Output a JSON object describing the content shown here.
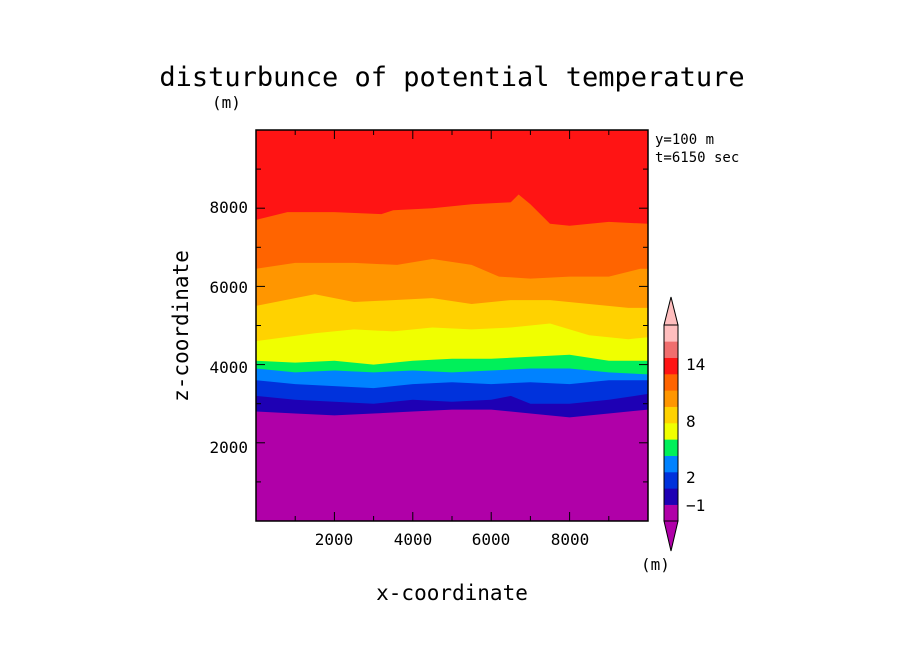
{
  "chart_data": {
    "type": "heatmap",
    "title": "disturbunce of potential temperature",
    "units_top": "(m)",
    "units_colorbar": "(m)",
    "info": [
      "y=100 m",
      "t=6150 sec"
    ],
    "xlabel": "x-coordinate",
    "ylabel": "z-coordinate",
    "xlim": [
      0,
      10000
    ],
    "ylim": [
      0,
      10000
    ],
    "x_ticks": [
      "2000",
      "4000",
      "6000",
      "8000"
    ],
    "y_ticks": [
      "2000",
      "4000",
      "6000",
      "8000"
    ],
    "colorbar_labels": [
      "14",
      "8",
      "2",
      "−1"
    ],
    "colorbar_colors": [
      "#b000a8",
      "#1e00b4",
      "#0032dc",
      "#0082ff",
      "#00f05a",
      "#f0ff00",
      "#ffd200",
      "#ff9600",
      "#ff6400",
      "#ff1414",
      "#f06e6e",
      "#ffbebe"
    ],
    "bands": [
      {
        "color": "#ff1414",
        "upper": [
          [
            0,
            10000
          ],
          [
            10000,
            10000
          ]
        ]
      },
      {
        "color": "#ff6400",
        "upper": [
          [
            0,
            7700
          ],
          [
            800,
            7900
          ],
          [
            2000,
            7900
          ],
          [
            3200,
            7850
          ],
          [
            3500,
            7950
          ],
          [
            4500,
            8000
          ],
          [
            5500,
            8100
          ],
          [
            6500,
            8150
          ],
          [
            6700,
            8350
          ],
          [
            7000,
            8100
          ],
          [
            7500,
            7600
          ],
          [
            8000,
            7550
          ],
          [
            9000,
            7650
          ],
          [
            10000,
            7600
          ]
        ]
      },
      {
        "color": "#ff9600",
        "upper": [
          [
            0,
            6450
          ],
          [
            1000,
            6600
          ],
          [
            2500,
            6600
          ],
          [
            3600,
            6550
          ],
          [
            4500,
            6700
          ],
          [
            5500,
            6550
          ],
          [
            6200,
            6250
          ],
          [
            7000,
            6200
          ],
          [
            8000,
            6250
          ],
          [
            9000,
            6250
          ],
          [
            9800,
            6450
          ],
          [
            10000,
            6450
          ]
        ]
      },
      {
        "color": "#ffd200",
        "upper": [
          [
            0,
            5500
          ],
          [
            1000,
            5700
          ],
          [
            1500,
            5800
          ],
          [
            2500,
            5600
          ],
          [
            3500,
            5650
          ],
          [
            4500,
            5700
          ],
          [
            5500,
            5550
          ],
          [
            6500,
            5650
          ],
          [
            7500,
            5650
          ],
          [
            8500,
            5550
          ],
          [
            9500,
            5450
          ],
          [
            10000,
            5450
          ]
        ]
      },
      {
        "color": "#f0ff00",
        "upper": [
          [
            0,
            4600
          ],
          [
            1500,
            4800
          ],
          [
            2500,
            4900
          ],
          [
            3500,
            4850
          ],
          [
            4500,
            4950
          ],
          [
            5500,
            4900
          ],
          [
            6500,
            4950
          ],
          [
            7500,
            5050
          ],
          [
            8500,
            4750
          ],
          [
            9500,
            4650
          ],
          [
            10000,
            4700
          ]
        ]
      },
      {
        "color": "#00f05a",
        "upper": [
          [
            0,
            4100
          ],
          [
            1000,
            4050
          ],
          [
            2000,
            4100
          ],
          [
            3000,
            4000
          ],
          [
            4000,
            4100
          ],
          [
            5000,
            4150
          ],
          [
            6000,
            4150
          ],
          [
            7000,
            4200
          ],
          [
            8000,
            4250
          ],
          [
            9000,
            4100
          ],
          [
            10000,
            4100
          ]
        ]
      },
      {
        "color": "#0082ff",
        "upper": [
          [
            0,
            3900
          ],
          [
            1000,
            3800
          ],
          [
            2000,
            3850
          ],
          [
            3000,
            3800
          ],
          [
            4000,
            3850
          ],
          [
            5000,
            3800
          ],
          [
            6000,
            3850
          ],
          [
            7000,
            3900
          ],
          [
            8000,
            3900
          ],
          [
            9000,
            3800
          ],
          [
            10000,
            3750
          ]
        ]
      },
      {
        "color": "#0032dc",
        "upper": [
          [
            0,
            3600
          ],
          [
            1000,
            3500
          ],
          [
            2000,
            3450
          ],
          [
            3000,
            3400
          ],
          [
            4000,
            3500
          ],
          [
            5000,
            3550
          ],
          [
            6000,
            3500
          ],
          [
            7000,
            3550
          ],
          [
            8000,
            3500
          ],
          [
            9000,
            3600
          ],
          [
            10000,
            3600
          ]
        ]
      },
      {
        "color": "#1e00b4",
        "upper": [
          [
            0,
            3200
          ],
          [
            1000,
            3100
          ],
          [
            2000,
            3050
          ],
          [
            3000,
            3000
          ],
          [
            4000,
            3100
          ],
          [
            5000,
            3050
          ],
          [
            6000,
            3100
          ],
          [
            6500,
            3200
          ],
          [
            7000,
            3000
          ],
          [
            8000,
            3000
          ],
          [
            9000,
            3100
          ],
          [
            10000,
            3250
          ]
        ]
      },
      {
        "color": "#b000a8",
        "upper": [
          [
            0,
            2800
          ],
          [
            1000,
            2750
          ],
          [
            2000,
            2700
          ],
          [
            3000,
            2750
          ],
          [
            4000,
            2800
          ],
          [
            5000,
            2850
          ],
          [
            6000,
            2850
          ],
          [
            7000,
            2750
          ],
          [
            8000,
            2650
          ],
          [
            9000,
            2750
          ],
          [
            10000,
            2850
          ]
        ]
      }
    ]
  }
}
